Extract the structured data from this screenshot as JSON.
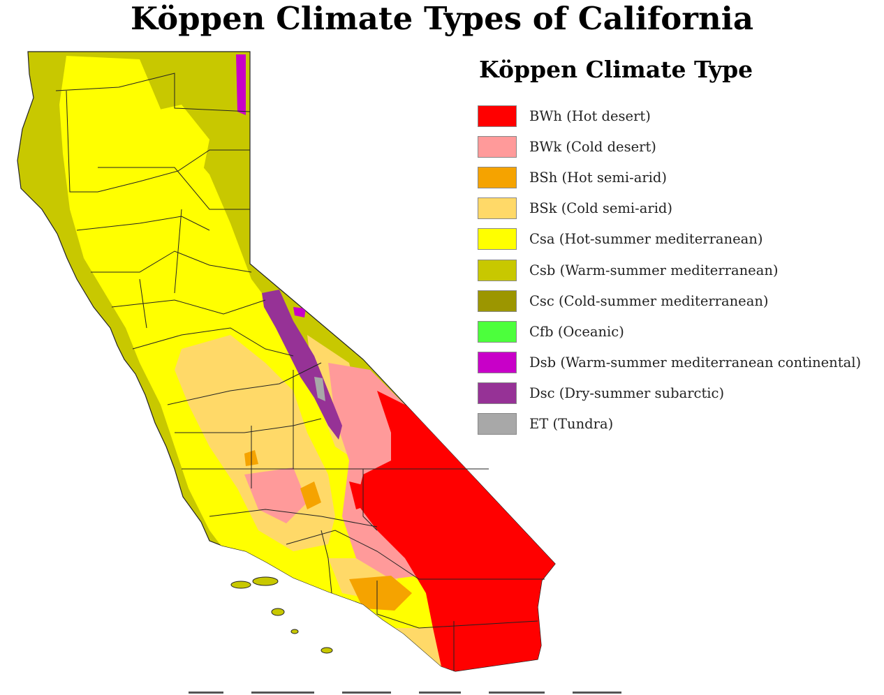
{
  "title": "Köppen Climate Types of California",
  "legend": {
    "title": "Köppen Climate Type",
    "items": [
      {
        "label": "BWh (Hot desert)",
        "color": "#ff0000"
      },
      {
        "label": "BWk (Cold desert)",
        "color": "#ff9a9a"
      },
      {
        "label": "BSh (Hot semi-arid)",
        "color": "#f5a300"
      },
      {
        "label": "BSk (Cold semi-arid)",
        "color": "#ffd968"
      },
      {
        "label": "Csa (Hot-summer mediterranean)",
        "color": "#ffff00"
      },
      {
        "label": "Csb (Warm-summer mediterranean)",
        "color": "#c8c800"
      },
      {
        "label": "Csc (Cold-summer mediterranean)",
        "color": "#9c9600"
      },
      {
        "label": "Cfb (Oceanic)",
        "color": "#4cff3c"
      },
      {
        "label": "Dsb (Warm-summer mediterranean continental)",
        "color": "#c800c8"
      },
      {
        "label": "Dsc (Dry-summer subarctic)",
        "color": "#963296"
      },
      {
        "label": "ET (Tundra)",
        "color": "#a8a8a8"
      }
    ]
  },
  "map": {
    "region": "California",
    "zones": [
      "Csb",
      "Csa",
      "BSk",
      "BWk",
      "BWh",
      "BSh",
      "Dsc",
      "Dsb"
    ]
  }
}
